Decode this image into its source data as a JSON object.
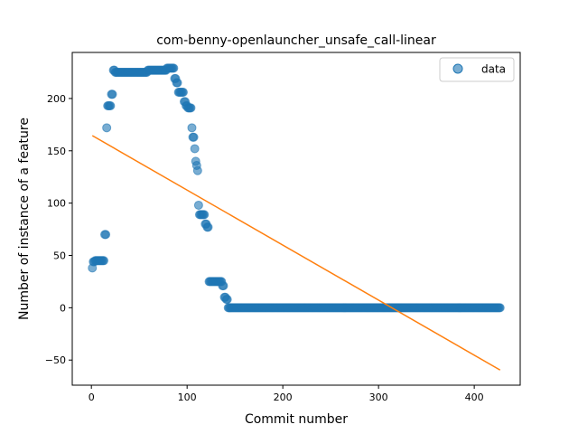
{
  "chart_data": {
    "type": "scatter",
    "title": "com-benny-openlauncher_unsafe_call-linear",
    "xlabel": "Commit number",
    "ylabel": "Number of instance of a feature",
    "xlim": [
      -20,
      448
    ],
    "ylim": [
      -74,
      244
    ],
    "xticks": [
      0,
      100,
      200,
      300,
      400
    ],
    "yticks": [
      -50,
      0,
      50,
      100,
      150,
      200
    ],
    "legend": {
      "placement": "top-right",
      "label": "data"
    },
    "colors": {
      "scatter": "#1f77b4",
      "fit": "#ff7f0e"
    },
    "series": [
      {
        "name": "data",
        "style": "scatter",
        "segments": [
          {
            "x_from": 1,
            "x_to": 1,
            "step": 1,
            "y": 38
          },
          {
            "x_from": 2,
            "x_to": 3,
            "step": 1,
            "y": 44
          },
          {
            "x_from": 4,
            "x_to": 13,
            "step": 1,
            "y": 45
          },
          {
            "x_from": 14,
            "x_to": 15,
            "step": 1,
            "y": 70
          },
          {
            "x_from": 16,
            "x_to": 16,
            "step": 1,
            "y": 172
          },
          {
            "x_from": 17,
            "x_to": 20,
            "step": 1,
            "y": 193
          },
          {
            "x_from": 21,
            "x_to": 22,
            "step": 1,
            "y": 204
          },
          {
            "x_from": 23,
            "x_to": 24,
            "step": 1,
            "y": 227
          },
          {
            "x_from": 25,
            "x_to": 58,
            "step": 1,
            "y": 225
          },
          {
            "x_from": 59,
            "x_to": 78,
            "step": 1,
            "y": 227
          },
          {
            "x_from": 79,
            "x_to": 86,
            "step": 1,
            "y": 229
          },
          {
            "x_from": 87,
            "x_to": 88,
            "step": 1,
            "y": 219
          },
          {
            "x_from": 89,
            "x_to": 90,
            "step": 1,
            "y": 215
          },
          {
            "x_from": 91,
            "x_to": 96,
            "step": 1,
            "y": 206
          },
          {
            "x_from": 97,
            "x_to": 98,
            "step": 1,
            "y": 197
          },
          {
            "x_from": 99,
            "x_to": 100,
            "step": 1,
            "y": 193
          },
          {
            "x_from": 101,
            "x_to": 104,
            "step": 1,
            "y": 191
          },
          {
            "x_from": 105,
            "x_to": 105,
            "step": 1,
            "y": 172
          },
          {
            "x_from": 106,
            "x_to": 107,
            "step": 1,
            "y": 163
          },
          {
            "x_from": 108,
            "x_to": 108,
            "step": 1,
            "y": 152
          },
          {
            "x_from": 109,
            "x_to": 109,
            "step": 1,
            "y": 140
          },
          {
            "x_from": 110,
            "x_to": 110,
            "step": 1,
            "y": 136
          },
          {
            "x_from": 111,
            "x_to": 111,
            "step": 1,
            "y": 131
          },
          {
            "x_from": 112,
            "x_to": 112,
            "step": 1,
            "y": 98
          },
          {
            "x_from": 113,
            "x_to": 118,
            "step": 1,
            "y": 89
          },
          {
            "x_from": 119,
            "x_to": 120,
            "step": 1,
            "y": 80
          },
          {
            "x_from": 121,
            "x_to": 122,
            "step": 1,
            "y": 77
          },
          {
            "x_from": 123,
            "x_to": 136,
            "step": 1,
            "y": 25
          },
          {
            "x_from": 137,
            "x_to": 138,
            "step": 1,
            "y": 21
          },
          {
            "x_from": 139,
            "x_to": 140,
            "step": 1,
            "y": 10
          },
          {
            "x_from": 141,
            "x_to": 142,
            "step": 1,
            "y": 8
          },
          {
            "x_from": 143,
            "x_to": 427,
            "step": 1,
            "y": 0
          }
        ]
      },
      {
        "name": "",
        "style": "line",
        "x": [
          1,
          427
        ],
        "y": [
          164.5,
          -59.5
        ]
      }
    ]
  }
}
